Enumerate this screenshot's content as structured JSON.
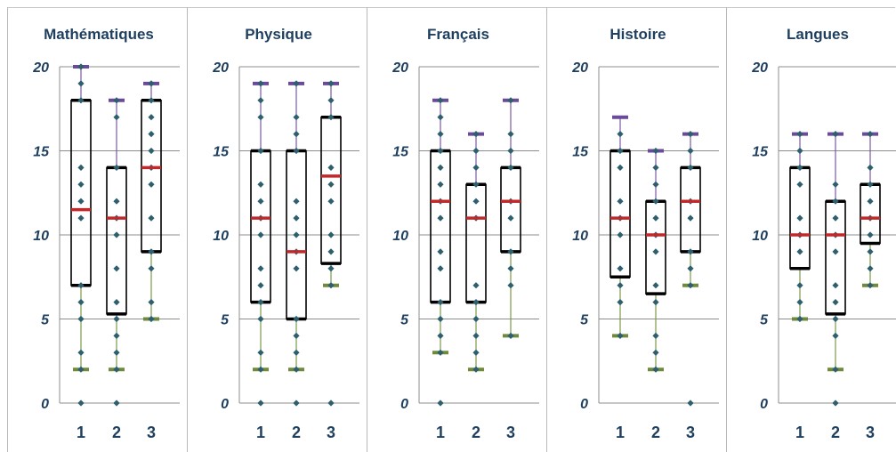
{
  "colors": {
    "title": "#1f3f5f",
    "axis_text": "#1f3f5f",
    "grid": "#8c8c8c",
    "point": "#2d5f6e",
    "median": "#c0282a",
    "upper_whisker_cap": "#6a4a9a",
    "lower_whisker_cap": "#6e8a3a",
    "upper_whisker": "#7a5aa0",
    "lower_whisker": "#7a9a4a",
    "box": "#000000"
  },
  "chart_data": [
    {
      "type": "box",
      "title": "Mathématiques",
      "categories": [
        "1",
        "2",
        "3"
      ],
      "ylim": [
        0,
        20
      ],
      "yticks": [
        "0",
        "5",
        "10",
        "15",
        "20"
      ],
      "grid": true,
      "boxes": [
        {
          "min": 2,
          "q1": 7,
          "median": 11.5,
          "q3": 18,
          "max": 20
        },
        {
          "min": 2,
          "q1": 5.3,
          "median": 11,
          "q3": 14,
          "max": 18
        },
        {
          "min": 5,
          "q1": 9,
          "median": 14,
          "q3": 18,
          "max": 19
        }
      ],
      "points": [
        [
          0,
          2,
          3,
          5,
          6,
          7,
          11,
          12,
          13,
          14,
          18,
          19,
          20
        ],
        [
          0,
          2,
          3,
          4,
          5,
          6,
          8,
          10,
          11,
          12,
          14,
          17,
          18
        ],
        [
          5,
          6,
          8,
          9,
          11,
          13,
          14,
          15,
          16,
          17,
          18,
          19
        ]
      ]
    },
    {
      "type": "box",
      "title": "Physique",
      "categories": [
        "1",
        "2",
        "3"
      ],
      "ylim": [
        0,
        20
      ],
      "yticks": [
        "0",
        "5",
        "10",
        "15",
        "20"
      ],
      "grid": true,
      "boxes": [
        {
          "min": 2,
          "q1": 6,
          "median": 11,
          "q3": 15,
          "max": 19
        },
        {
          "min": 2,
          "q1": 5,
          "median": 9,
          "q3": 15,
          "max": 19
        },
        {
          "min": 7,
          "q1": 8.3,
          "median": 13.5,
          "q3": 17,
          "max": 19
        }
      ],
      "points": [
        [
          0,
          2,
          3,
          5,
          6,
          7,
          8,
          10,
          11,
          12,
          13,
          15,
          17,
          18,
          19
        ],
        [
          0,
          2,
          3,
          4,
          5,
          8,
          9,
          10,
          11,
          12,
          15,
          16,
          17,
          19
        ],
        [
          0,
          7,
          8,
          9,
          10,
          12,
          13,
          14,
          17,
          18,
          19
        ]
      ]
    },
    {
      "type": "box",
      "title": "Français",
      "categories": [
        "1",
        "2",
        "3"
      ],
      "ylim": [
        0,
        20
      ],
      "yticks": [
        "0",
        "5",
        "10",
        "15",
        "20"
      ],
      "grid": true,
      "boxes": [
        {
          "min": 3,
          "q1": 6,
          "median": 12,
          "q3": 15,
          "max": 18
        },
        {
          "min": 2,
          "q1": 6,
          "median": 11,
          "q3": 13,
          "max": 16
        },
        {
          "min": 4,
          "q1": 9,
          "median": 12,
          "q3": 14,
          "max": 18
        }
      ],
      "points": [
        [
          0,
          3,
          4,
          5,
          6,
          8,
          9,
          11,
          12,
          13,
          14,
          15,
          16,
          17,
          18
        ],
        [
          2,
          3,
          4,
          5,
          6,
          7,
          11,
          12,
          13,
          14,
          15,
          16
        ],
        [
          4,
          7,
          8,
          9,
          11,
          12,
          14,
          15,
          16,
          18
        ]
      ]
    },
    {
      "type": "box",
      "title": "Histoire",
      "categories": [
        "1",
        "2",
        "3"
      ],
      "ylim": [
        0,
        20
      ],
      "yticks": [
        "0",
        "5",
        "10",
        "15",
        "20"
      ],
      "grid": true,
      "boxes": [
        {
          "min": 4,
          "q1": 7.5,
          "median": 11,
          "q3": 15,
          "max": 17
        },
        {
          "min": 2,
          "q1": 6.5,
          "median": 10,
          "q3": 12,
          "max": 15
        },
        {
          "min": 7,
          "q1": 9,
          "median": 12,
          "q3": 14,
          "max": 16
        }
      ],
      "points": [
        [
          4,
          6,
          7,
          8,
          10,
          11,
          12,
          14,
          15,
          16
        ],
        [
          2,
          3,
          4,
          6,
          7,
          9,
          10,
          11,
          12,
          13,
          14,
          15
        ],
        [
          0,
          7,
          8,
          9,
          11,
          12,
          14,
          15,
          16
        ]
      ]
    },
    {
      "type": "box",
      "title": "Langues",
      "categories": [
        "1",
        "2",
        "3"
      ],
      "ylim": [
        0,
        20
      ],
      "yticks": [
        "0",
        "5",
        "10",
        "15",
        "20"
      ],
      "grid": true,
      "boxes": [
        {
          "min": 5,
          "q1": 8,
          "median": 10,
          "q3": 14,
          "max": 16
        },
        {
          "min": 2,
          "q1": 5.3,
          "median": 10,
          "q3": 12,
          "max": 16
        },
        {
          "min": 7,
          "q1": 9.5,
          "median": 11,
          "q3": 13,
          "max": 16
        }
      ],
      "points": [
        [
          5,
          6,
          7,
          9,
          10,
          11,
          13,
          14,
          15,
          16
        ],
        [
          0,
          2,
          4,
          5,
          6,
          7,
          9,
          10,
          11,
          12,
          13,
          16
        ],
        [
          7,
          8,
          9,
          10,
          11,
          12,
          13,
          14,
          16
        ]
      ]
    }
  ]
}
